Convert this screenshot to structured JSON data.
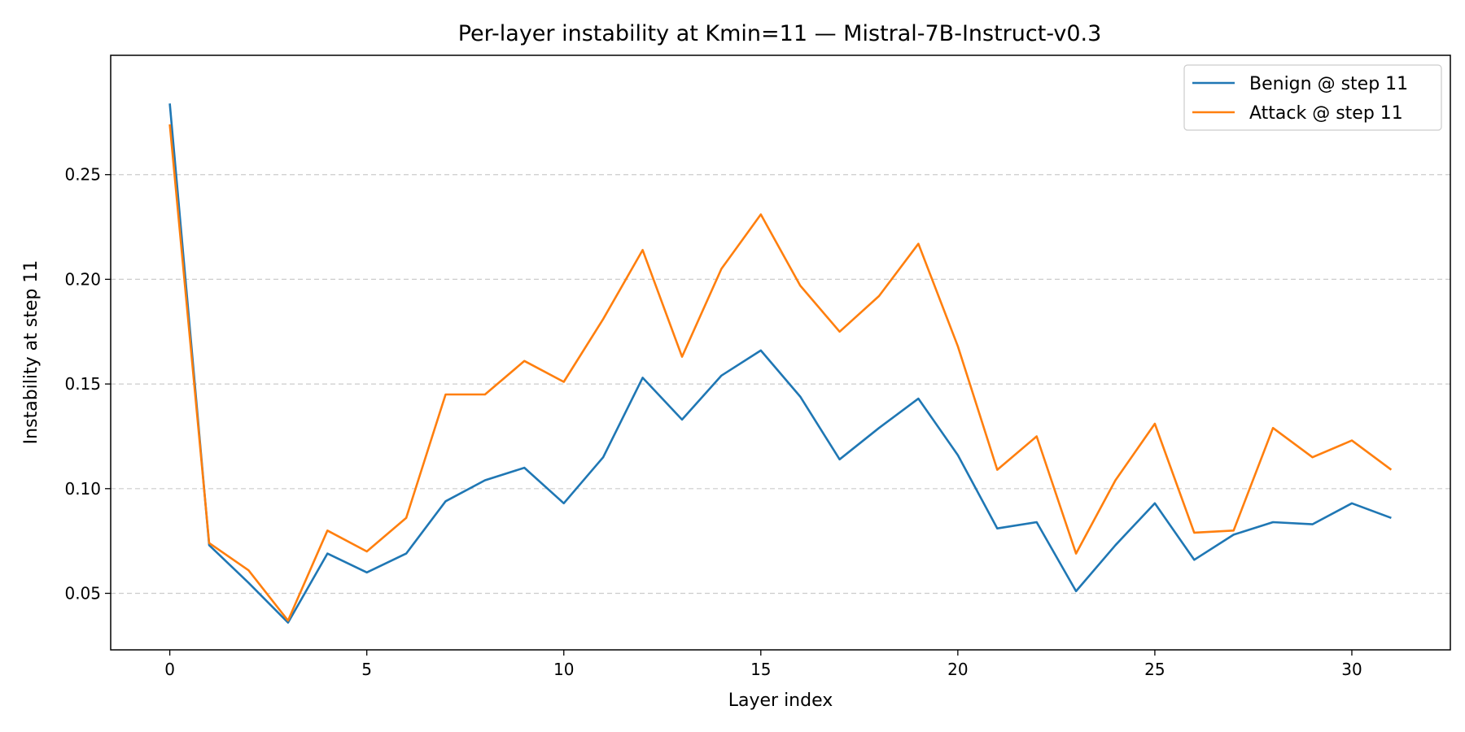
{
  "chart_data": {
    "type": "line",
    "title": "Per-layer instability at Kmin=11 — Mistral-7B-Instruct-v0.3",
    "xlabel": "Layer index",
    "ylabel": "Instability at step 11",
    "xlim": [
      -1.5,
      32.5
    ],
    "ylim": [
      0.023,
      0.307
    ],
    "x_ticks": [
      0,
      5,
      10,
      15,
      20,
      25,
      30
    ],
    "y_ticks": [
      0.05,
      0.1,
      0.15,
      0.2,
      0.25
    ],
    "y_tick_labels": [
      "0.05",
      "0.10",
      "0.15",
      "0.20",
      "0.25"
    ],
    "grid": "y-dashed",
    "legend_position": "top-right",
    "x": [
      0,
      1,
      2,
      3,
      4,
      5,
      6,
      7,
      8,
      9,
      10,
      11,
      12,
      13,
      14,
      15,
      16,
      17,
      18,
      19,
      20,
      21,
      22,
      23,
      24,
      25,
      26,
      27,
      28,
      29,
      30,
      31
    ],
    "series": [
      {
        "name": "Benign @ step 11",
        "color": "#1f77b4",
        "values": [
          0.284,
          0.073,
          0.055,
          0.036,
          0.069,
          0.06,
          0.069,
          0.094,
          0.104,
          0.11,
          0.093,
          0.115,
          0.153,
          0.133,
          0.154,
          0.166,
          0.144,
          0.114,
          0.129,
          0.143,
          0.116,
          0.081,
          0.084,
          0.051,
          0.073,
          0.093,
          0.066,
          0.078,
          0.084,
          0.083,
          0.093,
          0.086
        ]
      },
      {
        "name": "Attack @ step 11",
        "color": "#ff7f0e",
        "values": [
          0.274,
          0.074,
          0.061,
          0.037,
          0.08,
          0.07,
          0.086,
          0.145,
          0.145,
          0.161,
          0.151,
          0.181,
          0.214,
          0.163,
          0.205,
          0.231,
          0.197,
          0.175,
          0.192,
          0.217,
          0.168,
          0.109,
          0.125,
          0.069,
          0.104,
          0.131,
          0.079,
          0.08,
          0.129,
          0.115,
          0.123,
          0.109
        ]
      }
    ]
  }
}
